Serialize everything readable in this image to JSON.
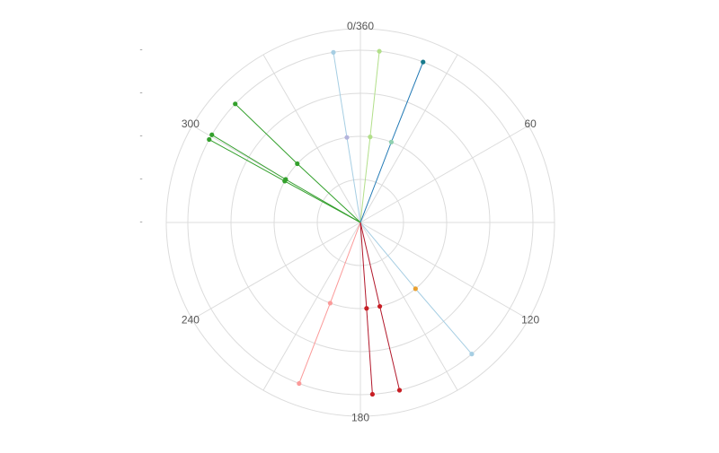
{
  "chart_data": {
    "type": "polar-line",
    "rlim": [
      0,
      4.5
    ],
    "rticks": [
      {
        "value": 0,
        "label": "-"
      },
      {
        "value": 1,
        "label": "-"
      },
      {
        "value": 2,
        "label": "-"
      },
      {
        "value": 3,
        "label": "-"
      },
      {
        "value": 4,
        "label": "-"
      }
    ],
    "thetalim": [
      0,
      360
    ],
    "thetaticks": [
      {
        "value": 0,
        "label": "0/360"
      },
      60,
      120,
      180,
      240,
      300
    ],
    "theta_gridlines": [
      0,
      30,
      60,
      90,
      120,
      150,
      180,
      210,
      240,
      270,
      300,
      330
    ],
    "grid": true,
    "series": [
      {
        "color": "#a6cee3",
        "point_colors": [
          "#b4b4dc",
          "#a6cee3"
        ],
        "theta": [
          351,
          351
        ],
        "r": [
          2,
          4
        ]
      },
      {
        "color": "#b2df8a",
        "point_colors": [
          "#b2df8a",
          "#b2df8a"
        ],
        "theta": [
          6.5,
          6.3
        ],
        "r": [
          2,
          4
        ]
      },
      {
        "color": "#1f78b4",
        "point_colors": [
          "#8fd0b0",
          "#167a8c"
        ],
        "theta": [
          21,
          21.3
        ],
        "r": [
          2,
          4
        ]
      },
      {
        "color": "#33a02c",
        "point_colors": [
          "#33a02c",
          "#33a02c"
        ],
        "theta": [
          313,
          313.5
        ],
        "r": [
          2,
          4
        ]
      },
      {
        "color": "#33a02c",
        "point_colors": [
          "#33a02c",
          "#33a02c"
        ],
        "theta": [
          300,
          300.6
        ],
        "r": [
          2,
          4
        ]
      },
      {
        "color": "#33a02c",
        "point_colors": [
          "#33a02c",
          "#33a02c"
        ],
        "theta": [
          298.7,
          298.8
        ],
        "r": [
          2,
          4
        ]
      },
      {
        "color": "#a6cee3",
        "point_colors": [
          "#e8a030",
          "#a6cee3"
        ],
        "theta": [
          140.3,
          139.8
        ],
        "r": [
          2,
          4
        ]
      },
      {
        "color": "#fb9a99",
        "point_colors": [
          "#fb9a99",
          "#fb9a99"
        ],
        "theta": [
          200.5,
          200.8
        ],
        "r": [
          2,
          4
        ]
      },
      {
        "color": "#b2182b",
        "point_colors": [
          "#c81e24",
          "#c81e24"
        ],
        "theta": [
          175.9,
          176
        ],
        "r": [
          2,
          4
        ]
      },
      {
        "color": "#b2182b",
        "point_colors": [
          "#c81e24",
          "#c81e24"
        ],
        "theta": [
          167,
          166.9
        ],
        "r": [
          2,
          4
        ]
      }
    ]
  }
}
